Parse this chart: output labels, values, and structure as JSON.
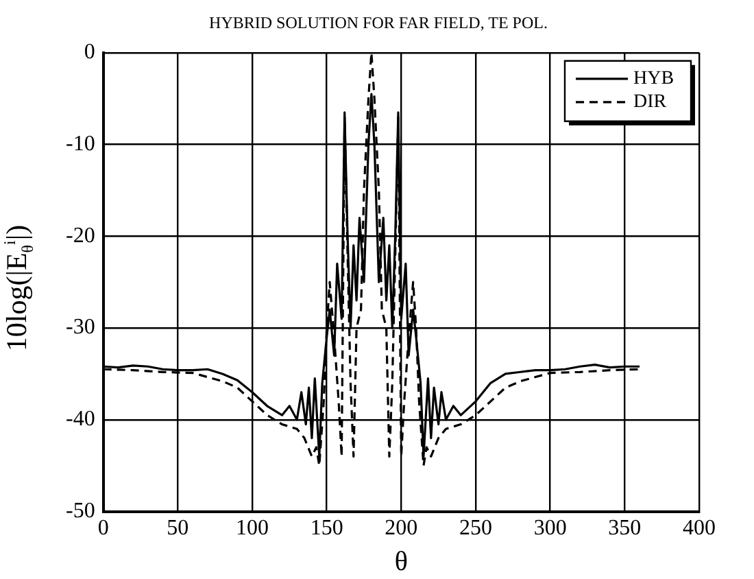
{
  "chart_data": {
    "type": "line",
    "title": "HYBRID SOLUTION FOR FAR FIELD, TE POL.",
    "xlabel": "θ",
    "ylabel": "10log(|E$_{θ}$$^{i}$|)",
    "xlim": [
      0,
      400
    ],
    "xticks": [
      0,
      50,
      100,
      150,
      200,
      250,
      300,
      350,
      400
    ],
    "ylim": [
      -50,
      0
    ],
    "yticks": [
      -50,
      -40,
      -30,
      -20,
      -10,
      0
    ],
    "grid": true,
    "legend": "top right",
    "marker": "none",
    "series": [
      {
        "name": "HYB",
        "color": "#000000",
        "line_style": "solid",
        "x": [
          0,
          10,
          20,
          30,
          40,
          50,
          60,
          70,
          80,
          90,
          100,
          110,
          120,
          125,
          130,
          133,
          136,
          138,
          140,
          142,
          145,
          147,
          150,
          152,
          155,
          157,
          160,
          162,
          164,
          166,
          168,
          170,
          172,
          175,
          178,
          180,
          182,
          185,
          188,
          190,
          192,
          194,
          196,
          198,
          200,
          203,
          205,
          208,
          210,
          213,
          215,
          218,
          220,
          222,
          225,
          227,
          230,
          235,
          240,
          250,
          260,
          270,
          280,
          290,
          300,
          310,
          320,
          330,
          340,
          350,
          360
        ],
        "values": [
          -34.2,
          -34.3,
          -34.1,
          -34.2,
          -34.5,
          -34.6,
          -34.6,
          -34.5,
          -35,
          -35.7,
          -37,
          -38.5,
          -39.5,
          -38.5,
          -40,
          -37,
          -40.5,
          -36.5,
          -42,
          -35.5,
          -44,
          -36,
          -31,
          -28,
          -33,
          -23,
          -29,
          -6.5,
          -20,
          -30,
          -21,
          -27,
          -18,
          -25,
          -10,
          -4.5,
          -10,
          -25,
          -18,
          -27,
          -21,
          -30,
          -20,
          -6.5,
          -29,
          -23,
          -33,
          -28,
          -31,
          -36,
          -44,
          -35.5,
          -42,
          -36.5,
          -40.5,
          -37,
          -40,
          -38.5,
          -39.5,
          -38,
          -36,
          -35,
          -34.8,
          -34.6,
          -34.6,
          -34.5,
          -34.2,
          -34,
          -34.3,
          -34.2,
          -34.2
        ]
      },
      {
        "name": "DIR",
        "color": "#000000",
        "line_style": "dashed",
        "x": [
          0,
          20,
          40,
          60,
          80,
          90,
          100,
          110,
          120,
          130,
          135,
          140,
          143,
          145,
          148,
          150,
          152,
          155,
          158,
          160,
          162,
          164,
          166,
          168,
          170,
          173,
          175,
          178,
          180,
          182,
          185,
          187,
          190,
          192,
          194,
          196,
          198,
          200,
          202,
          205,
          208,
          210,
          212,
          215,
          217,
          220,
          225,
          230,
          240,
          250,
          260,
          270,
          280,
          300,
          320,
          340,
          360
        ],
        "values": [
          -34.5,
          -34.6,
          -34.8,
          -34.9,
          -35.8,
          -36.5,
          -38,
          -39.5,
          -40.5,
          -41,
          -42,
          -44,
          -43,
          -45,
          -38,
          -30,
          -25,
          -31,
          -38,
          -44,
          -7,
          -22,
          -36,
          -44,
          -30,
          -28,
          -15,
          -5,
          0,
          -5,
          -15,
          -28,
          -30,
          -44,
          -36,
          -22,
          -7,
          -44,
          -38,
          -31,
          -25,
          -30,
          -38,
          -45,
          -43,
          -44,
          -42,
          -41,
          -40.5,
          -39.5,
          -38,
          -36.5,
          -35.8,
          -34.9,
          -34.8,
          -34.6,
          -34.5
        ]
      }
    ]
  }
}
